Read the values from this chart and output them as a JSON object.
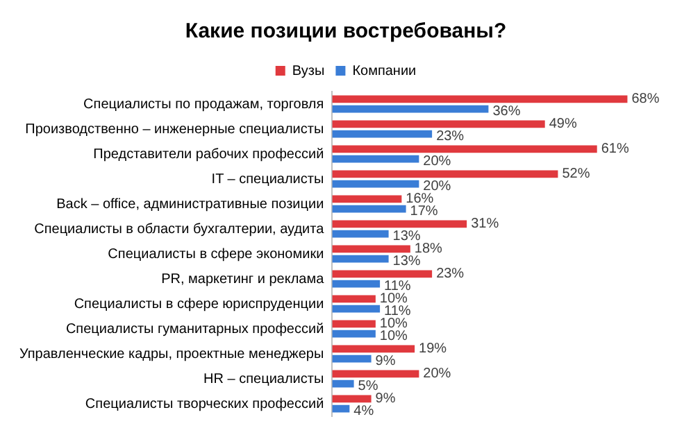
{
  "chart_data": {
    "type": "bar",
    "orientation": "horizontal",
    "title": "Какие позиции востребованы?",
    "legend": "top",
    "tick_labels": "y",
    "categories": [
      "Специалисты по продажам, торговля",
      "Производственно – инженерные специалисты",
      "Представители рабочих профессий",
      "IT – специалисты",
      "Back – office, административные позиции",
      "Специалисты в области бухгалтерии, аудита",
      "Специалисты в сфере экономики",
      "PR, маркетинг и реклама",
      "Специалисты в сфере юриспруденции",
      "Специалисты гуманитарных профессий",
      "Управленческие кадры, проектные менеджеры",
      "HR – специалисты",
      "Специалисты творческих профессий"
    ],
    "series": [
      {
        "name": "Вузы",
        "color": "#e0393e",
        "values": [
          68,
          49,
          61,
          52,
          16,
          31,
          18,
          23,
          10,
          10,
          19,
          20,
          9
        ],
        "value_labels": [
          "68%",
          "49%",
          "61%",
          "52%",
          "16%",
          "31%",
          "18%",
          "23%",
          "10%",
          "10%",
          "19%",
          "20%",
          "9%"
        ]
      },
      {
        "name": "Компании",
        "color": "#3a7dd6",
        "values": [
          36,
          23,
          20,
          20,
          17,
          13,
          13,
          11,
          11,
          10,
          9,
          5,
          4
        ],
        "value_labels": [
          "36%",
          "23%",
          "20%",
          "20%",
          "17%",
          "13%",
          "13%",
          "11%",
          "11%",
          "10%",
          "9%",
          "5%",
          "4%"
        ]
      }
    ]
  }
}
